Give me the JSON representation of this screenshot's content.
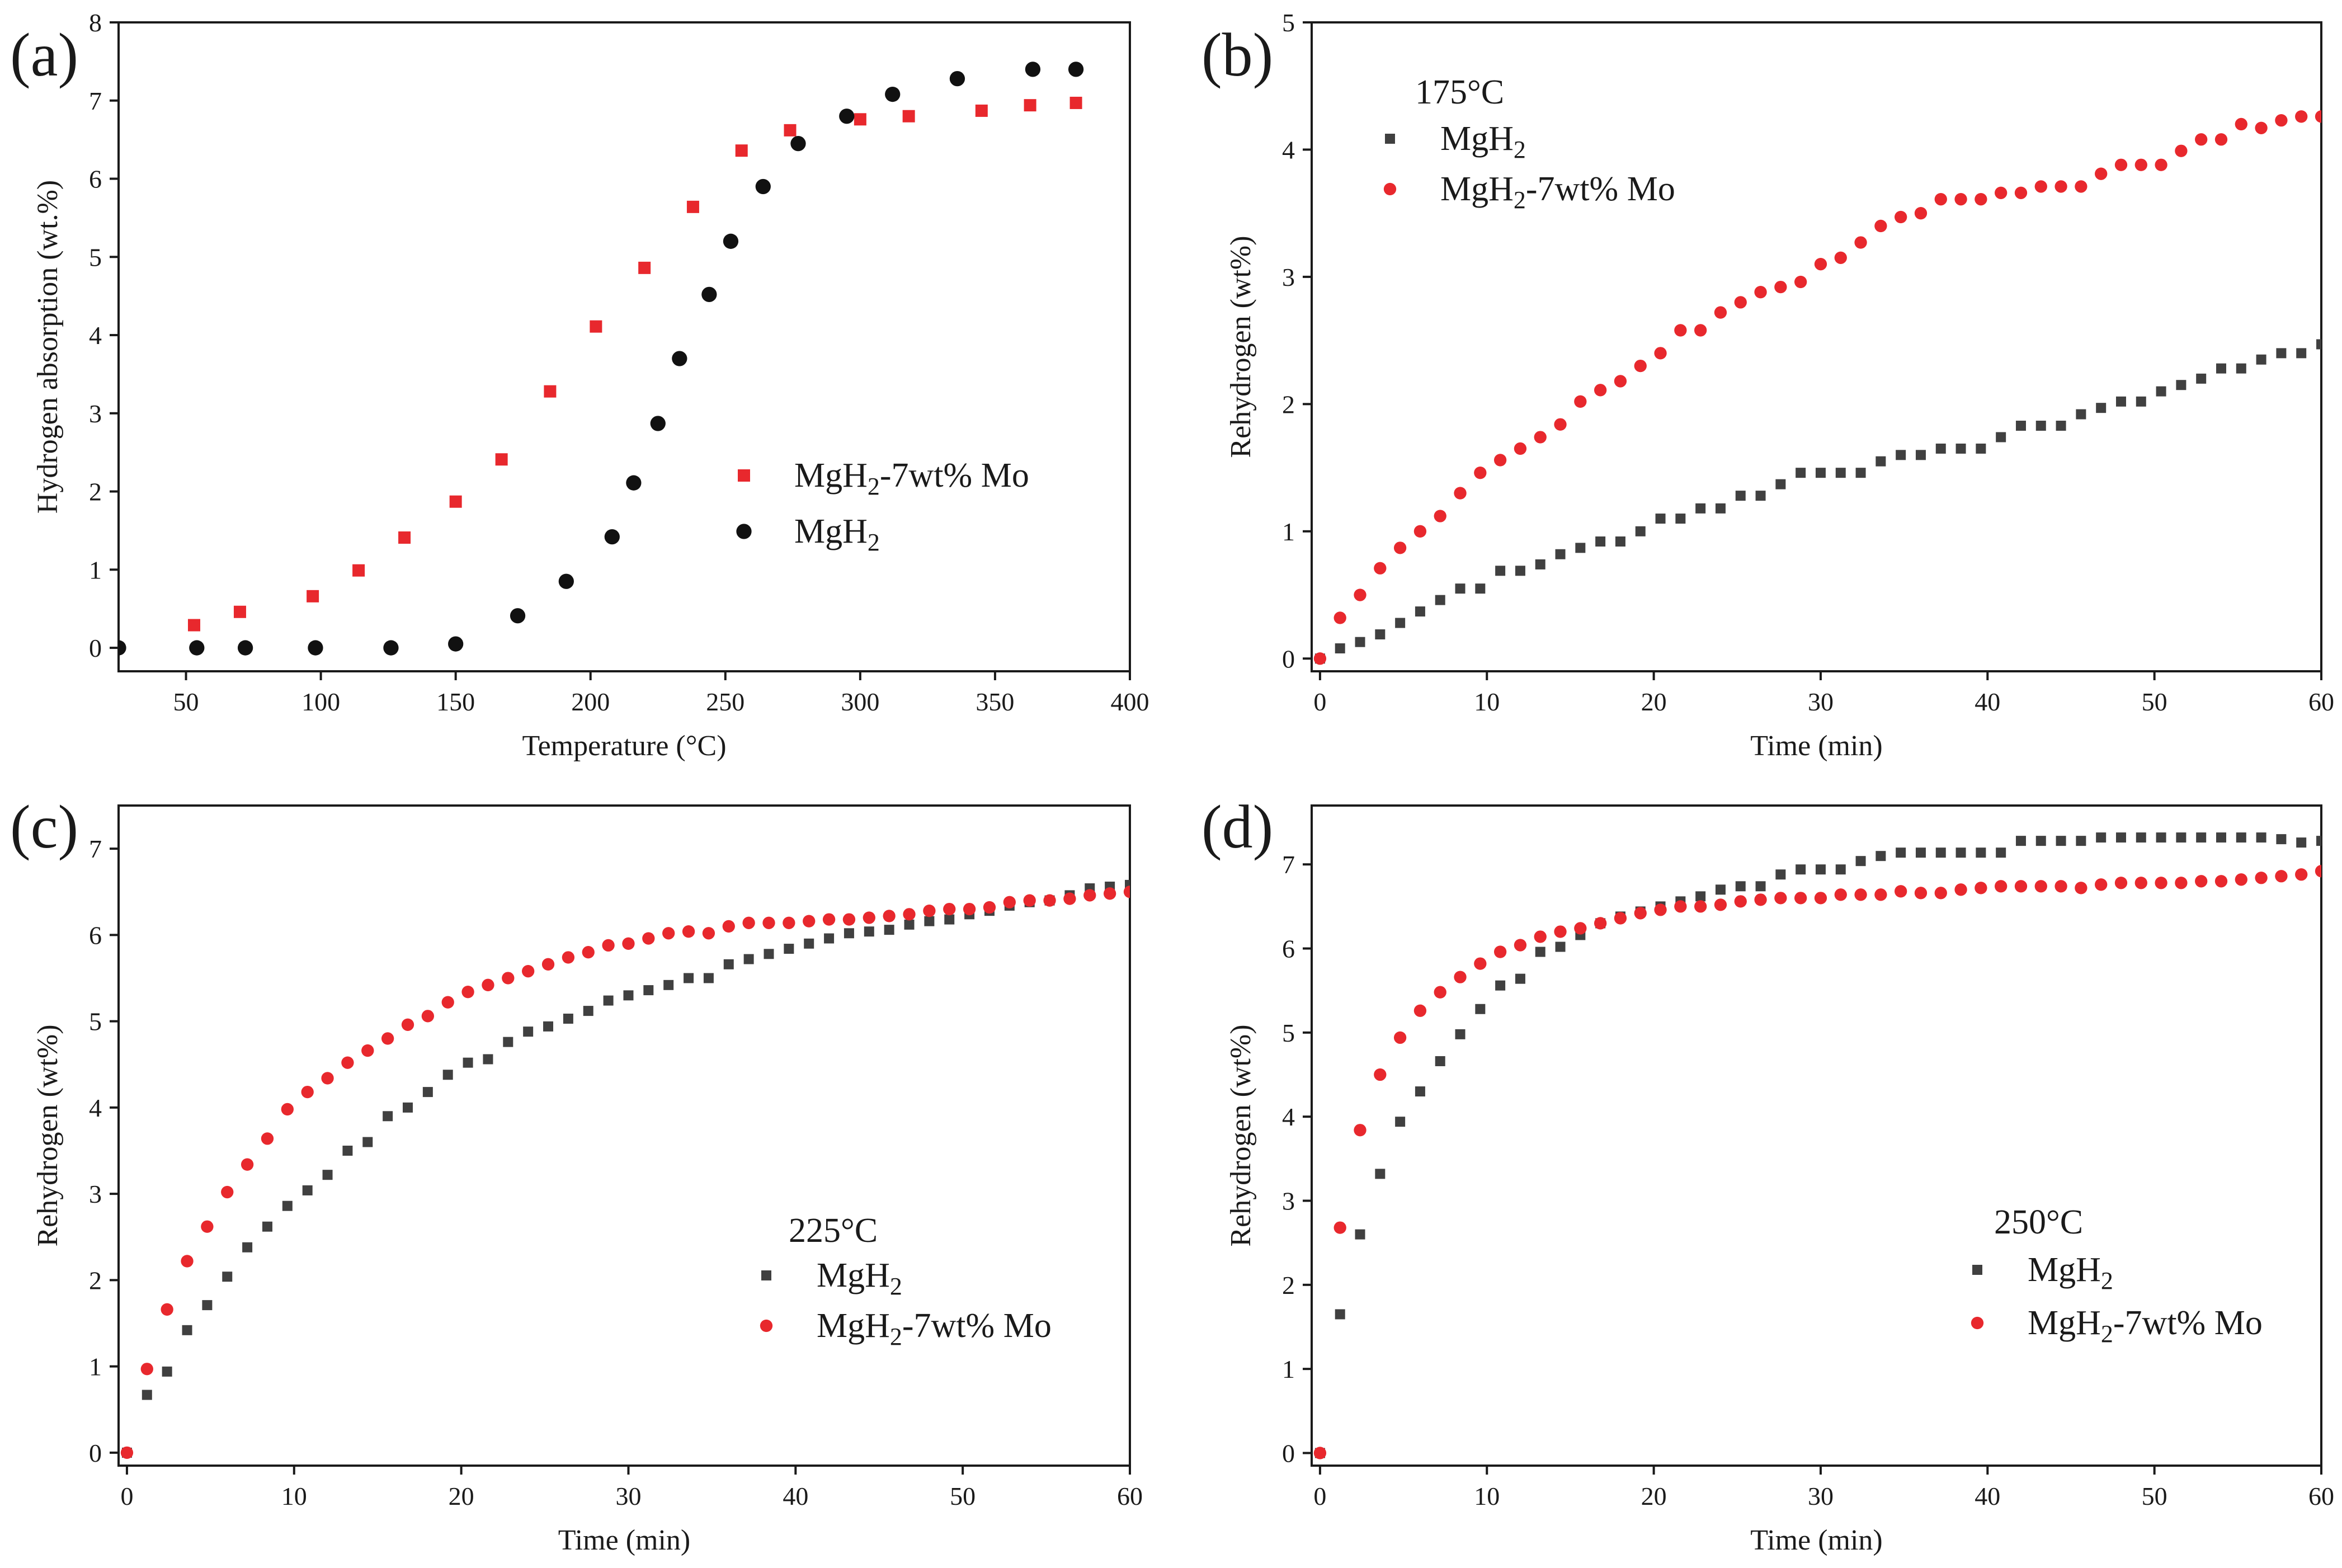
{
  "colors": {
    "mgh2_mo": "#e8282d",
    "mgh2": "#404040",
    "mgh2_panel_a": "#111111",
    "axis": "#1a1a1a"
  },
  "chart_data": [
    {
      "panel": "(a)",
      "type": "scatter",
      "xlabel": "Temperature (°C)",
      "ylabel": "Hydrogen absorption (wt.%)",
      "xlim": [
        25,
        400
      ],
      "ylim": [
        -0.3,
        8
      ],
      "xticks": [
        50,
        100,
        150,
        200,
        250,
        300,
        350,
        400
      ],
      "yticks": [
        0,
        1,
        2,
        3,
        4,
        5,
        6,
        7,
        8
      ],
      "legend_title": "",
      "legend_position": "center-right",
      "series": [
        {
          "key": "mo",
          "name_base": "MgH",
          "name_sub": "2",
          "name_rest": "-7wt% Mo",
          "marker": "square",
          "color": "#e8282d",
          "x": [
            53,
            70,
            97,
            114,
            131,
            150,
            167,
            185,
            202,
            220,
            238,
            256,
            274,
            300,
            318,
            345,
            363,
            380
          ],
          "y": [
            0.29,
            0.46,
            0.66,
            0.99,
            1.41,
            1.87,
            2.41,
            3.28,
            4.11,
            4.86,
            5.64,
            6.36,
            6.62,
            6.76,
            6.8,
            6.87,
            6.94,
            6.97
          ]
        },
        {
          "key": "mgh2",
          "name_base": "MgH",
          "name_sub": "2",
          "name_rest": "",
          "marker": "circle",
          "color": "#111111",
          "x": [
            25,
            54,
            72,
            98,
            126,
            150,
            173,
            191,
            208,
            216,
            225,
            233,
            244,
            252,
            264,
            277,
            295,
            312,
            336,
            364,
            380
          ],
          "y": [
            0,
            0,
            0,
            0,
            0,
            0.05,
            0.41,
            0.85,
            1.42,
            2.11,
            2.87,
            3.7,
            4.52,
            5.2,
            5.9,
            6.45,
            6.8,
            7.08,
            7.28,
            7.4,
            7.4
          ]
        }
      ]
    },
    {
      "panel": "(b)",
      "type": "scatter",
      "xlabel": "Time (min)",
      "ylabel": "Rehydrogen (wt%)",
      "xlim": [
        -0.5,
        60
      ],
      "ylim": [
        -0.1,
        5
      ],
      "xticks": [
        0,
        10,
        20,
        30,
        40,
        50,
        60
      ],
      "yticks": [
        0,
        1,
        2,
        3,
        4,
        5
      ],
      "legend_title": "175°C",
      "legend_position": "top-left",
      "series": [
        {
          "key": "mgh2",
          "name_base": "MgH",
          "name_sub": "2",
          "name_rest": "",
          "marker": "square",
          "color": "#404040",
          "x": [
            0,
            1.2,
            2.4,
            3.6,
            4.8,
            6,
            7.2,
            8.4,
            9.6,
            10.8,
            12,
            13.2,
            14.4,
            15.6,
            16.8,
            18,
            19.2,
            20.4,
            21.6,
            22.8,
            24,
            25.2,
            26.4,
            27.6,
            28.8,
            30,
            31.2,
            32.4,
            33.6,
            34.8,
            36,
            37.2,
            38.4,
            39.6,
            40.8,
            42,
            43.2,
            44.4,
            45.6,
            46.8,
            48,
            49.2,
            50.4,
            51.6,
            52.8,
            54,
            55.2,
            56.4,
            57.6,
            58.8,
            60
          ],
          "y": [
            0,
            0.08,
            0.13,
            0.19,
            0.28,
            0.37,
            0.46,
            0.55,
            0.55,
            0.69,
            0.69,
            0.74,
            0.82,
            0.87,
            0.92,
            0.92,
            1.0,
            1.1,
            1.1,
            1.18,
            1.18,
            1.28,
            1.28,
            1.37,
            1.46,
            1.46,
            1.46,
            1.46,
            1.55,
            1.6,
            1.6,
            1.65,
            1.65,
            1.65,
            1.74,
            1.83,
            1.83,
            1.83,
            1.92,
            1.97,
            2.02,
            2.02,
            2.1,
            2.15,
            2.2,
            2.28,
            2.28,
            2.35,
            2.4,
            2.4,
            2.47
          ]
        },
        {
          "key": "mo",
          "name_base": "MgH",
          "name_sub": "2",
          "name_rest": "-7wt% Mo",
          "marker": "circle",
          "color": "#e8282d",
          "x": [
            0,
            1.2,
            2.4,
            3.6,
            4.8,
            6,
            7.2,
            8.4,
            9.6,
            10.8,
            12,
            13.2,
            14.4,
            15.6,
            16.8,
            18,
            19.2,
            20.4,
            21.6,
            22.8,
            24,
            25.2,
            26.4,
            27.6,
            28.8,
            30,
            31.2,
            32.4,
            33.6,
            34.8,
            36,
            37.2,
            38.4,
            39.6,
            40.8,
            42,
            43.2,
            44.4,
            45.6,
            46.8,
            48,
            49.2,
            50.4,
            51.6,
            52.8,
            54,
            55.2,
            56.4,
            57.6,
            58.8,
            60
          ],
          "y": [
            0,
            0.32,
            0.5,
            0.71,
            0.87,
            1.0,
            1.12,
            1.3,
            1.46,
            1.56,
            1.65,
            1.74,
            1.84,
            2.02,
            2.11,
            2.18,
            2.3,
            2.4,
            2.58,
            2.58,
            2.72,
            2.8,
            2.88,
            2.92,
            2.96,
            3.1,
            3.15,
            3.27,
            3.4,
            3.47,
            3.5,
            3.61,
            3.61,
            3.61,
            3.66,
            3.66,
            3.71,
            3.71,
            3.71,
            3.81,
            3.88,
            3.88,
            3.88,
            3.99,
            4.08,
            4.08,
            4.2,
            4.17,
            4.23,
            4.26,
            4.26
          ]
        }
      ]
    },
    {
      "panel": "(c)",
      "type": "scatter",
      "xlabel": "Time (min)",
      "ylabel": "Rehydrogen (wt%)",
      "xlim": [
        -0.5,
        60
      ],
      "ylim": [
        -0.15,
        7.5
      ],
      "xticks": [
        0,
        10,
        20,
        30,
        40,
        50,
        60
      ],
      "yticks": [
        0,
        1,
        2,
        3,
        4,
        5,
        6,
        7
      ],
      "legend_title": "225°C",
      "legend_position": "center-right",
      "series": [
        {
          "key": "mgh2",
          "name_base": "MgH",
          "name_sub": "2",
          "name_rest": "",
          "marker": "square",
          "color": "#404040",
          "x": [
            0,
            1.2,
            2.4,
            3.6,
            4.8,
            6,
            7.2,
            8.4,
            9.6,
            10.8,
            12,
            13.2,
            14.4,
            15.6,
            16.8,
            18,
            19.2,
            20.4,
            21.6,
            22.8,
            24,
            25.2,
            26.4,
            27.6,
            28.8,
            30,
            31.2,
            32.4,
            33.6,
            34.8,
            36,
            37.2,
            38.4,
            39.6,
            40.8,
            42,
            43.2,
            44.4,
            45.6,
            46.8,
            48,
            49.2,
            50.4,
            51.6,
            52.8,
            54,
            55.2,
            56.4,
            57.6,
            58.8,
            60
          ],
          "y": [
            0,
            0.67,
            0.94,
            1.42,
            1.71,
            2.04,
            2.38,
            2.62,
            2.86,
            3.04,
            3.22,
            3.5,
            3.6,
            3.9,
            4.0,
            4.18,
            4.38,
            4.52,
            4.56,
            4.76,
            4.88,
            4.94,
            5.03,
            5.12,
            5.24,
            5.3,
            5.36,
            5.42,
            5.5,
            5.5,
            5.66,
            5.72,
            5.78,
            5.84,
            5.9,
            5.96,
            6.02,
            6.04,
            6.06,
            6.12,
            6.16,
            6.18,
            6.24,
            6.28,
            6.34,
            6.38,
            6.4,
            6.46,
            6.54,
            6.56,
            6.58
          ]
        },
        {
          "key": "mo",
          "name_base": "MgH",
          "name_sub": "2",
          "name_rest": "-7wt% Mo",
          "marker": "circle",
          "color": "#e8282d",
          "x": [
            0,
            1.2,
            2.4,
            3.6,
            4.8,
            6,
            7.2,
            8.4,
            9.6,
            10.8,
            12,
            13.2,
            14.4,
            15.6,
            16.8,
            18,
            19.2,
            20.4,
            21.6,
            22.8,
            24,
            25.2,
            26.4,
            27.6,
            28.8,
            30,
            31.2,
            32.4,
            33.6,
            34.8,
            36,
            37.2,
            38.4,
            39.6,
            40.8,
            42,
            43.2,
            44.4,
            45.6,
            46.8,
            48,
            49.2,
            50.4,
            51.6,
            52.8,
            54,
            55.2,
            56.4,
            57.6,
            58.8,
            60
          ],
          "y": [
            0,
            0.97,
            1.66,
            2.22,
            2.62,
            3.02,
            3.34,
            3.64,
            3.98,
            4.18,
            4.34,
            4.52,
            4.66,
            4.8,
            4.96,
            5.06,
            5.22,
            5.34,
            5.42,
            5.5,
            5.58,
            5.66,
            5.74,
            5.8,
            5.88,
            5.9,
            5.96,
            6.02,
            6.04,
            6.02,
            6.1,
            6.14,
            6.14,
            6.14,
            6.16,
            6.18,
            6.18,
            6.2,
            6.22,
            6.24,
            6.28,
            6.3,
            6.3,
            6.32,
            6.38,
            6.4,
            6.4,
            6.42,
            6.46,
            6.48,
            6.5
          ]
        }
      ]
    },
    {
      "panel": "(d)",
      "type": "scatter",
      "xlabel": "Time (min)",
      "ylabel": "Rehydrogen (wt%)",
      "xlim": [
        -0.5,
        60
      ],
      "ylim": [
        -0.15,
        7.7
      ],
      "xticks": [
        0,
        10,
        20,
        30,
        40,
        50,
        60
      ],
      "yticks": [
        0,
        1,
        2,
        3,
        4,
        5,
        6,
        7
      ],
      "legend_title": "250°C",
      "legend_position": "bottom-right",
      "series": [
        {
          "key": "mgh2",
          "name_base": "MgH",
          "name_sub": "2",
          "name_rest": "",
          "marker": "square",
          "color": "#404040",
          "x": [
            0,
            1.2,
            2.4,
            3.6,
            4.8,
            6,
            7.2,
            8.4,
            9.6,
            10.8,
            12,
            13.2,
            14.4,
            15.6,
            16.8,
            18,
            19.2,
            20.4,
            21.6,
            22.8,
            24,
            25.2,
            26.4,
            27.6,
            28.8,
            30,
            31.2,
            32.4,
            33.6,
            34.8,
            36,
            37.2,
            38.4,
            39.6,
            40.8,
            42,
            43.2,
            44.4,
            45.6,
            46.8,
            48,
            49.2,
            50.4,
            51.6,
            52.8,
            54,
            55.2,
            56.4,
            57.6,
            58.8,
            60
          ],
          "y": [
            0,
            1.65,
            2.6,
            3.32,
            3.94,
            4.3,
            4.66,
            4.98,
            5.28,
            5.56,
            5.64,
            5.96,
            6.02,
            6.16,
            6.3,
            6.38,
            6.44,
            6.5,
            6.56,
            6.62,
            6.7,
            6.74,
            6.74,
            6.88,
            6.94,
            6.94,
            6.94,
            7.04,
            7.1,
            7.14,
            7.14,
            7.14,
            7.14,
            7.14,
            7.14,
            7.28,
            7.28,
            7.28,
            7.28,
            7.32,
            7.32,
            7.32,
            7.32,
            7.32,
            7.32,
            7.32,
            7.32,
            7.32,
            7.3,
            7.26,
            7.28
          ]
        },
        {
          "key": "mo",
          "name_base": "MgH",
          "name_sub": "2",
          "name_rest": "-7wt% Mo",
          "marker": "circle",
          "color": "#e8282d",
          "x": [
            0,
            1.2,
            2.4,
            3.6,
            4.8,
            6,
            7.2,
            8.4,
            9.6,
            10.8,
            12,
            13.2,
            14.4,
            15.6,
            16.8,
            18,
            19.2,
            20.4,
            21.6,
            22.8,
            24,
            25.2,
            26.4,
            27.6,
            28.8,
            30,
            31.2,
            32.4,
            33.6,
            34.8,
            36,
            37.2,
            38.4,
            39.6,
            40.8,
            42,
            43.2,
            44.4,
            45.6,
            46.8,
            48,
            49.2,
            50.4,
            51.6,
            52.8,
            54,
            55.2,
            56.4,
            57.6,
            58.8,
            60
          ],
          "y": [
            0,
            2.68,
            3.84,
            4.5,
            4.94,
            5.26,
            5.48,
            5.66,
            5.82,
            5.96,
            6.04,
            6.14,
            6.2,
            6.24,
            6.3,
            6.36,
            6.42,
            6.46,
            6.5,
            6.5,
            6.52,
            6.56,
            6.58,
            6.6,
            6.6,
            6.6,
            6.64,
            6.64,
            6.64,
            6.68,
            6.66,
            6.66,
            6.7,
            6.72,
            6.74,
            6.74,
            6.74,
            6.74,
            6.72,
            6.76,
            6.78,
            6.78,
            6.78,
            6.78,
            6.8,
            6.8,
            6.82,
            6.84,
            6.86,
            6.88,
            6.92
          ]
        }
      ]
    }
  ]
}
